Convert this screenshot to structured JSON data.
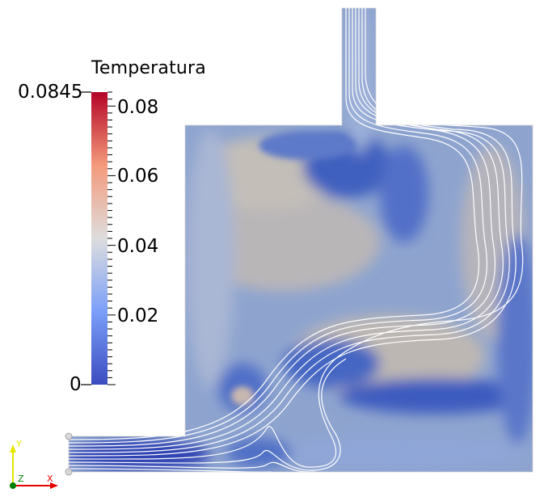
{
  "scalar_bar": {
    "title": "Temperatura",
    "range_max_label": "0.0845",
    "range_min_label": "0",
    "tick_labels": [
      "0.08",
      "0.06",
      "0.04",
      "0.02"
    ]
  },
  "orientation_axes": {
    "y_label": "Y",
    "z_label": "Z",
    "x_label": "X",
    "colors": {
      "y": "#e6e600",
      "x": "#e60000",
      "z": "#008000"
    }
  },
  "colormap": {
    "name": "Cool to Warm",
    "low": "#3b4cc0",
    "mid": "#dddddd",
    "high": "#b40426"
  },
  "streamline_color": "#ffffff"
}
